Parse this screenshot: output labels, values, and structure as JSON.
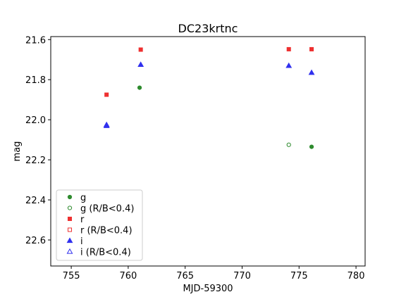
{
  "chart_data": {
    "type": "scatter",
    "title": "DC23krtnc",
    "xlabel": "MJD-59300",
    "ylabel": "mag",
    "xlim": [
      753.2,
      780.8
    ],
    "ylim": [
      22.73,
      21.585
    ],
    "y_inverted": true,
    "x_ticks": [
      755,
      760,
      765,
      770,
      775,
      780
    ],
    "y_ticks": [
      21.6,
      21.8,
      22.0,
      22.2,
      22.4,
      22.6
    ],
    "x_tick_labels": [
      "755",
      "760",
      "765",
      "770",
      "775",
      "780"
    ],
    "y_tick_labels": [
      "21.6",
      "21.8",
      "22.0",
      "22.2",
      "22.4",
      "22.6"
    ],
    "grid": false,
    "legend_position": "lower-left",
    "series": [
      {
        "name": "g",
        "marker": "circle",
        "filled": true,
        "color": "#2e8b2e",
        "points": [
          {
            "x": 761.0,
            "y": 21.84
          },
          {
            "x": 776.1,
            "y": 22.135
          }
        ]
      },
      {
        "name": "g (R/B<0.4)",
        "marker": "circle",
        "filled": false,
        "color": "#2e8b2e",
        "points": [
          {
            "x": 774.1,
            "y": 22.125
          }
        ]
      },
      {
        "name": "r",
        "marker": "square",
        "filled": true,
        "color": "#ee3030",
        "points": [
          {
            "x": 758.1,
            "y": 21.875
          },
          {
            "x": 761.1,
            "y": 21.65
          },
          {
            "x": 774.1,
            "y": 21.648
          },
          {
            "x": 776.1,
            "y": 21.648
          }
        ]
      },
      {
        "name": "r (R/B<0.4)",
        "marker": "square",
        "filled": false,
        "color": "#ee3030",
        "points": []
      },
      {
        "name": "i",
        "marker": "triangle",
        "filled": true,
        "color": "#3030ee",
        "points": [
          {
            "x": 758.1,
            "y": 22.03
          },
          {
            "x": 761.1,
            "y": 21.725
          },
          {
            "x": 774.1,
            "y": 21.73
          },
          {
            "x": 776.1,
            "y": 21.765
          }
        ]
      },
      {
        "name": "i (R/B<0.4)",
        "marker": "triangle",
        "filled": false,
        "color": "#3030ee",
        "points": [
          {
            "x": 758.1,
            "y": 22.025
          }
        ]
      }
    ]
  }
}
